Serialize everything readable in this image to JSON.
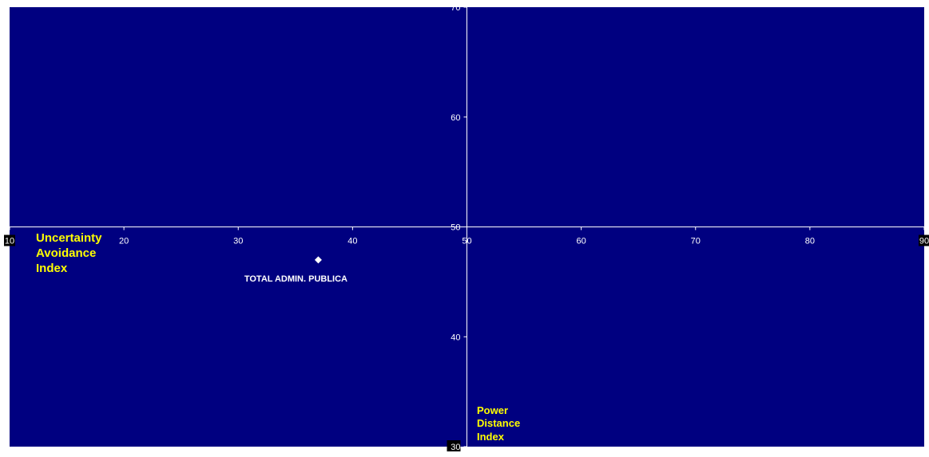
{
  "chart_data": {
    "type": "scatter",
    "title": "",
    "xlabel": "Uncertainty Avoidance Index",
    "ylabel": "Power Distance Index",
    "xlim": [
      10,
      90
    ],
    "ylim": [
      30,
      70
    ],
    "x_ticks": [
      "10",
      "20",
      "30",
      "40",
      "50",
      "60",
      "70",
      "80",
      "90"
    ],
    "y_ticks": [
      "30",
      "40",
      "50",
      "60",
      "70"
    ],
    "axis_cross": {
      "x": 50,
      "y": 50
    },
    "grid": false,
    "legend": "none",
    "points": [
      {
        "label": "TOTAL ADMIN. PUBLICA",
        "x": 37,
        "y": 47
      }
    ],
    "colors": {
      "plot_background": "#000080",
      "axis": "#ffffff",
      "marker": "#ffffff",
      "axis_title": "#ffff00"
    }
  }
}
